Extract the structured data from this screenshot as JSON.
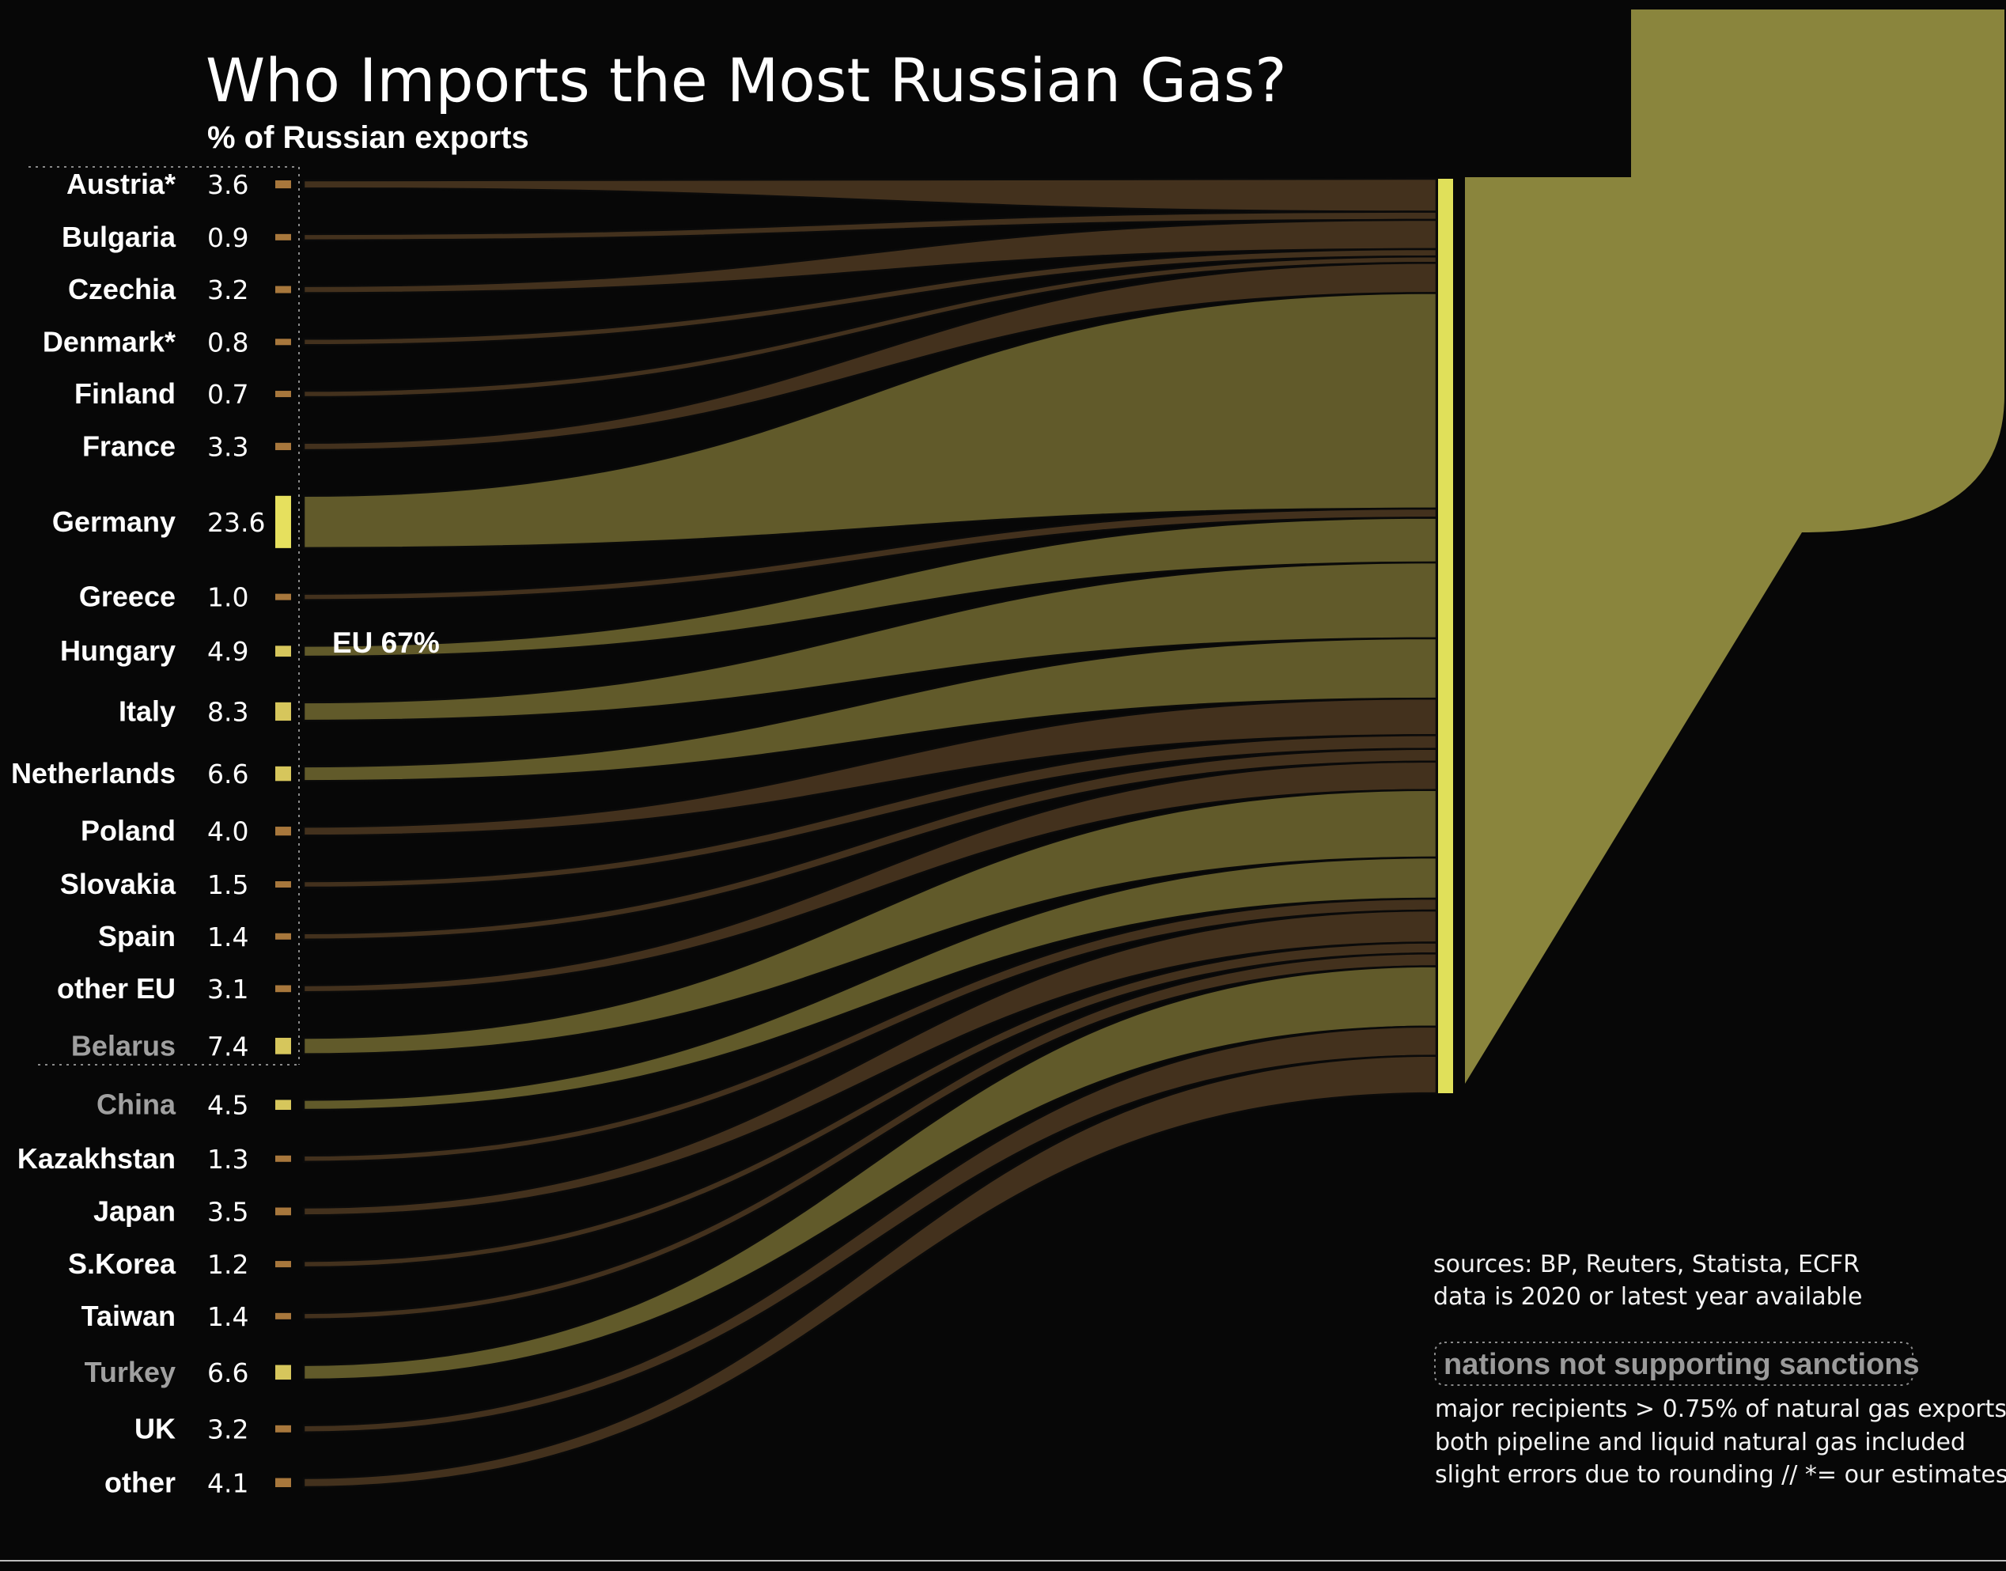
{
  "header": {
    "title": "Who Imports the Most Russian Gas?",
    "subtitle": "% of Russian exports"
  },
  "colors": {
    "background": "#070707",
    "large_flow": "#615a2a",
    "small_flow": "#43311d",
    "large_bar": "#d6c65c",
    "small_bar": "#a7773c",
    "highlight_bar": "#e6e05e",
    "destination_bar": "#e0e05a",
    "russia_shape": "#8a853d",
    "sanction_gray": "#a0a0a0"
  },
  "annotations": {
    "eu_label": "EU 67%",
    "sources": "sources: BP, Reuters, Statista, ECFR",
    "data_year": "data is 2020 or latest year available",
    "legend": "nations not supporting sanctions",
    "note_1": "major recipients > 0.75% of natural gas exports",
    "note_2": "both pipeline and liquid natural gas included",
    "note_3": "slight errors due to rounding // *= our estimates"
  },
  "chart_data": {
    "type": "sankey",
    "title": "Who Imports the Most Russian Gas?",
    "subtitle": "% of Russian exports",
    "unit": "%",
    "groups": [
      {
        "name": "EU",
        "label": "EU 67%",
        "total": 67
      }
    ],
    "flows": [
      {
        "name": "Austria*",
        "value": 3.6,
        "group": "EU",
        "supports_sanctions": true
      },
      {
        "name": "Bulgaria",
        "value": 0.9,
        "group": "EU",
        "supports_sanctions": true
      },
      {
        "name": "Czechia",
        "value": 3.2,
        "group": "EU",
        "supports_sanctions": true
      },
      {
        "name": "Denmark*",
        "value": 0.8,
        "group": "EU",
        "supports_sanctions": true
      },
      {
        "name": "Finland",
        "value": 0.7,
        "group": "EU",
        "supports_sanctions": true
      },
      {
        "name": "France",
        "value": 3.3,
        "group": "EU",
        "supports_sanctions": true
      },
      {
        "name": "Germany",
        "value": 23.6,
        "group": "EU",
        "supports_sanctions": true
      },
      {
        "name": "Greece",
        "value": 1.0,
        "group": "EU",
        "supports_sanctions": true
      },
      {
        "name": "Hungary",
        "value": 4.9,
        "group": "EU",
        "supports_sanctions": true
      },
      {
        "name": "Italy",
        "value": 8.3,
        "group": "EU",
        "supports_sanctions": true
      },
      {
        "name": "Netherlands",
        "value": 6.6,
        "group": "EU",
        "supports_sanctions": true
      },
      {
        "name": "Poland",
        "value": 4.0,
        "group": "EU",
        "supports_sanctions": true
      },
      {
        "name": "Slovakia",
        "value": 1.5,
        "group": "EU",
        "supports_sanctions": true
      },
      {
        "name": "Spain",
        "value": 1.4,
        "group": "EU",
        "supports_sanctions": true
      },
      {
        "name": "other EU",
        "value": 3.1,
        "group": "EU",
        "supports_sanctions": true
      },
      {
        "name": "Belarus",
        "value": 7.4,
        "group": "non-EU",
        "supports_sanctions": false
      },
      {
        "name": "China",
        "value": 4.5,
        "group": "non-EU",
        "supports_sanctions": false
      },
      {
        "name": "Kazakhstan",
        "value": 1.3,
        "group": "non-EU",
        "supports_sanctions": true
      },
      {
        "name": "Japan",
        "value": 3.5,
        "group": "non-EU",
        "supports_sanctions": true
      },
      {
        "name": "S.Korea",
        "value": 1.2,
        "group": "non-EU",
        "supports_sanctions": true
      },
      {
        "name": "Taiwan",
        "value": 1.4,
        "group": "non-EU",
        "supports_sanctions": true
      },
      {
        "name": "Turkey",
        "value": 6.6,
        "group": "non-EU",
        "supports_sanctions": false
      },
      {
        "name": "UK",
        "value": 3.2,
        "group": "non-EU",
        "supports_sanctions": true
      },
      {
        "name": "other",
        "value": 4.1,
        "group": "non-EU",
        "supports_sanctions": true
      }
    ]
  }
}
